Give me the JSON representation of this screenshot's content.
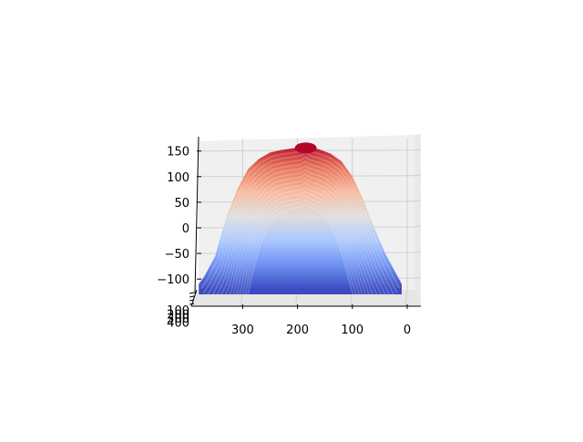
{
  "chart_data": {
    "type": "surface",
    "title": "",
    "xlabel": "",
    "ylabel": "",
    "zlabel": "",
    "colormap": "coolwarm",
    "colormap_stops": [
      "#3b4cc0",
      "#6f92f3",
      "#aac7fd",
      "#dddddd",
      "#f7b89c",
      "#e7745b",
      "#b40426"
    ],
    "pane_color": "#f0f0f0",
    "grid": true,
    "xlim": [
      0,
      380
    ],
    "zlim": [
      -150,
      175
    ],
    "x_ticks": [
      "300",
      "200",
      "100",
      "0"
    ],
    "x_tick_values": [
      300,
      200,
      100,
      0
    ],
    "z_ticks": [
      "−100",
      "−50",
      "0",
      "50",
      "100",
      "150"
    ],
    "z_tick_values": [
      -100,
      -50,
      0,
      50,
      100,
      150
    ],
    "y_ticks": [
      "100",
      "200",
      "300",
      "400"
    ],
    "profile": {
      "x": [
        380,
        370,
        350,
        330,
        310,
        290,
        270,
        250,
        230,
        210,
        195,
        185,
        175,
        160,
        140,
        120,
        100,
        80,
        60,
        40,
        20,
        10
      ],
      "z": [
        -110,
        -95,
        -55,
        20,
        75,
        115,
        135,
        147,
        152,
        155,
        157,
        163,
        157,
        153,
        145,
        130,
        100,
        55,
        0,
        -50,
        -90,
        -110
      ]
    }
  }
}
